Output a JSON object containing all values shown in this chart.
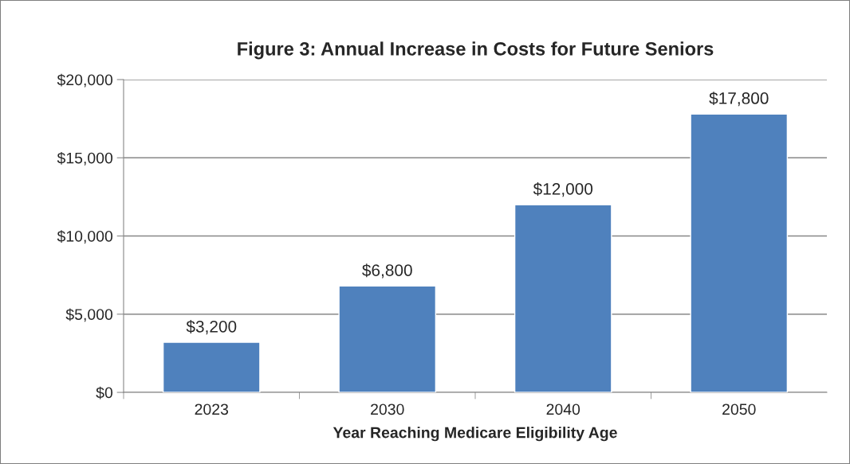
{
  "chart_data": {
    "type": "bar",
    "title": "Figure 3: Annual Increase in Costs for Future Seniors",
    "xlabel": "Year Reaching Medicare Eligibility Age",
    "categories": [
      "2023",
      "2030",
      "2040",
      "2050"
    ],
    "values": [
      3200,
      6800,
      12000,
      17800
    ],
    "color": "#4f81bd",
    "value_labels": [
      "$3,200",
      "$6,800",
      "$12,000",
      "$17,800"
    ],
    "ylim": [
      0,
      20000
    ],
    "yticks": [
      {
        "value": 0,
        "label": "$0"
      },
      {
        "value": 5000,
        "label": "$5,000"
      },
      {
        "value": 10000,
        "label": "$10,000"
      },
      {
        "value": 15000,
        "label": "$15,000"
      },
      {
        "value": 20000,
        "label": "$20,000"
      }
    ],
    "grid": "y",
    "legend": false
  }
}
